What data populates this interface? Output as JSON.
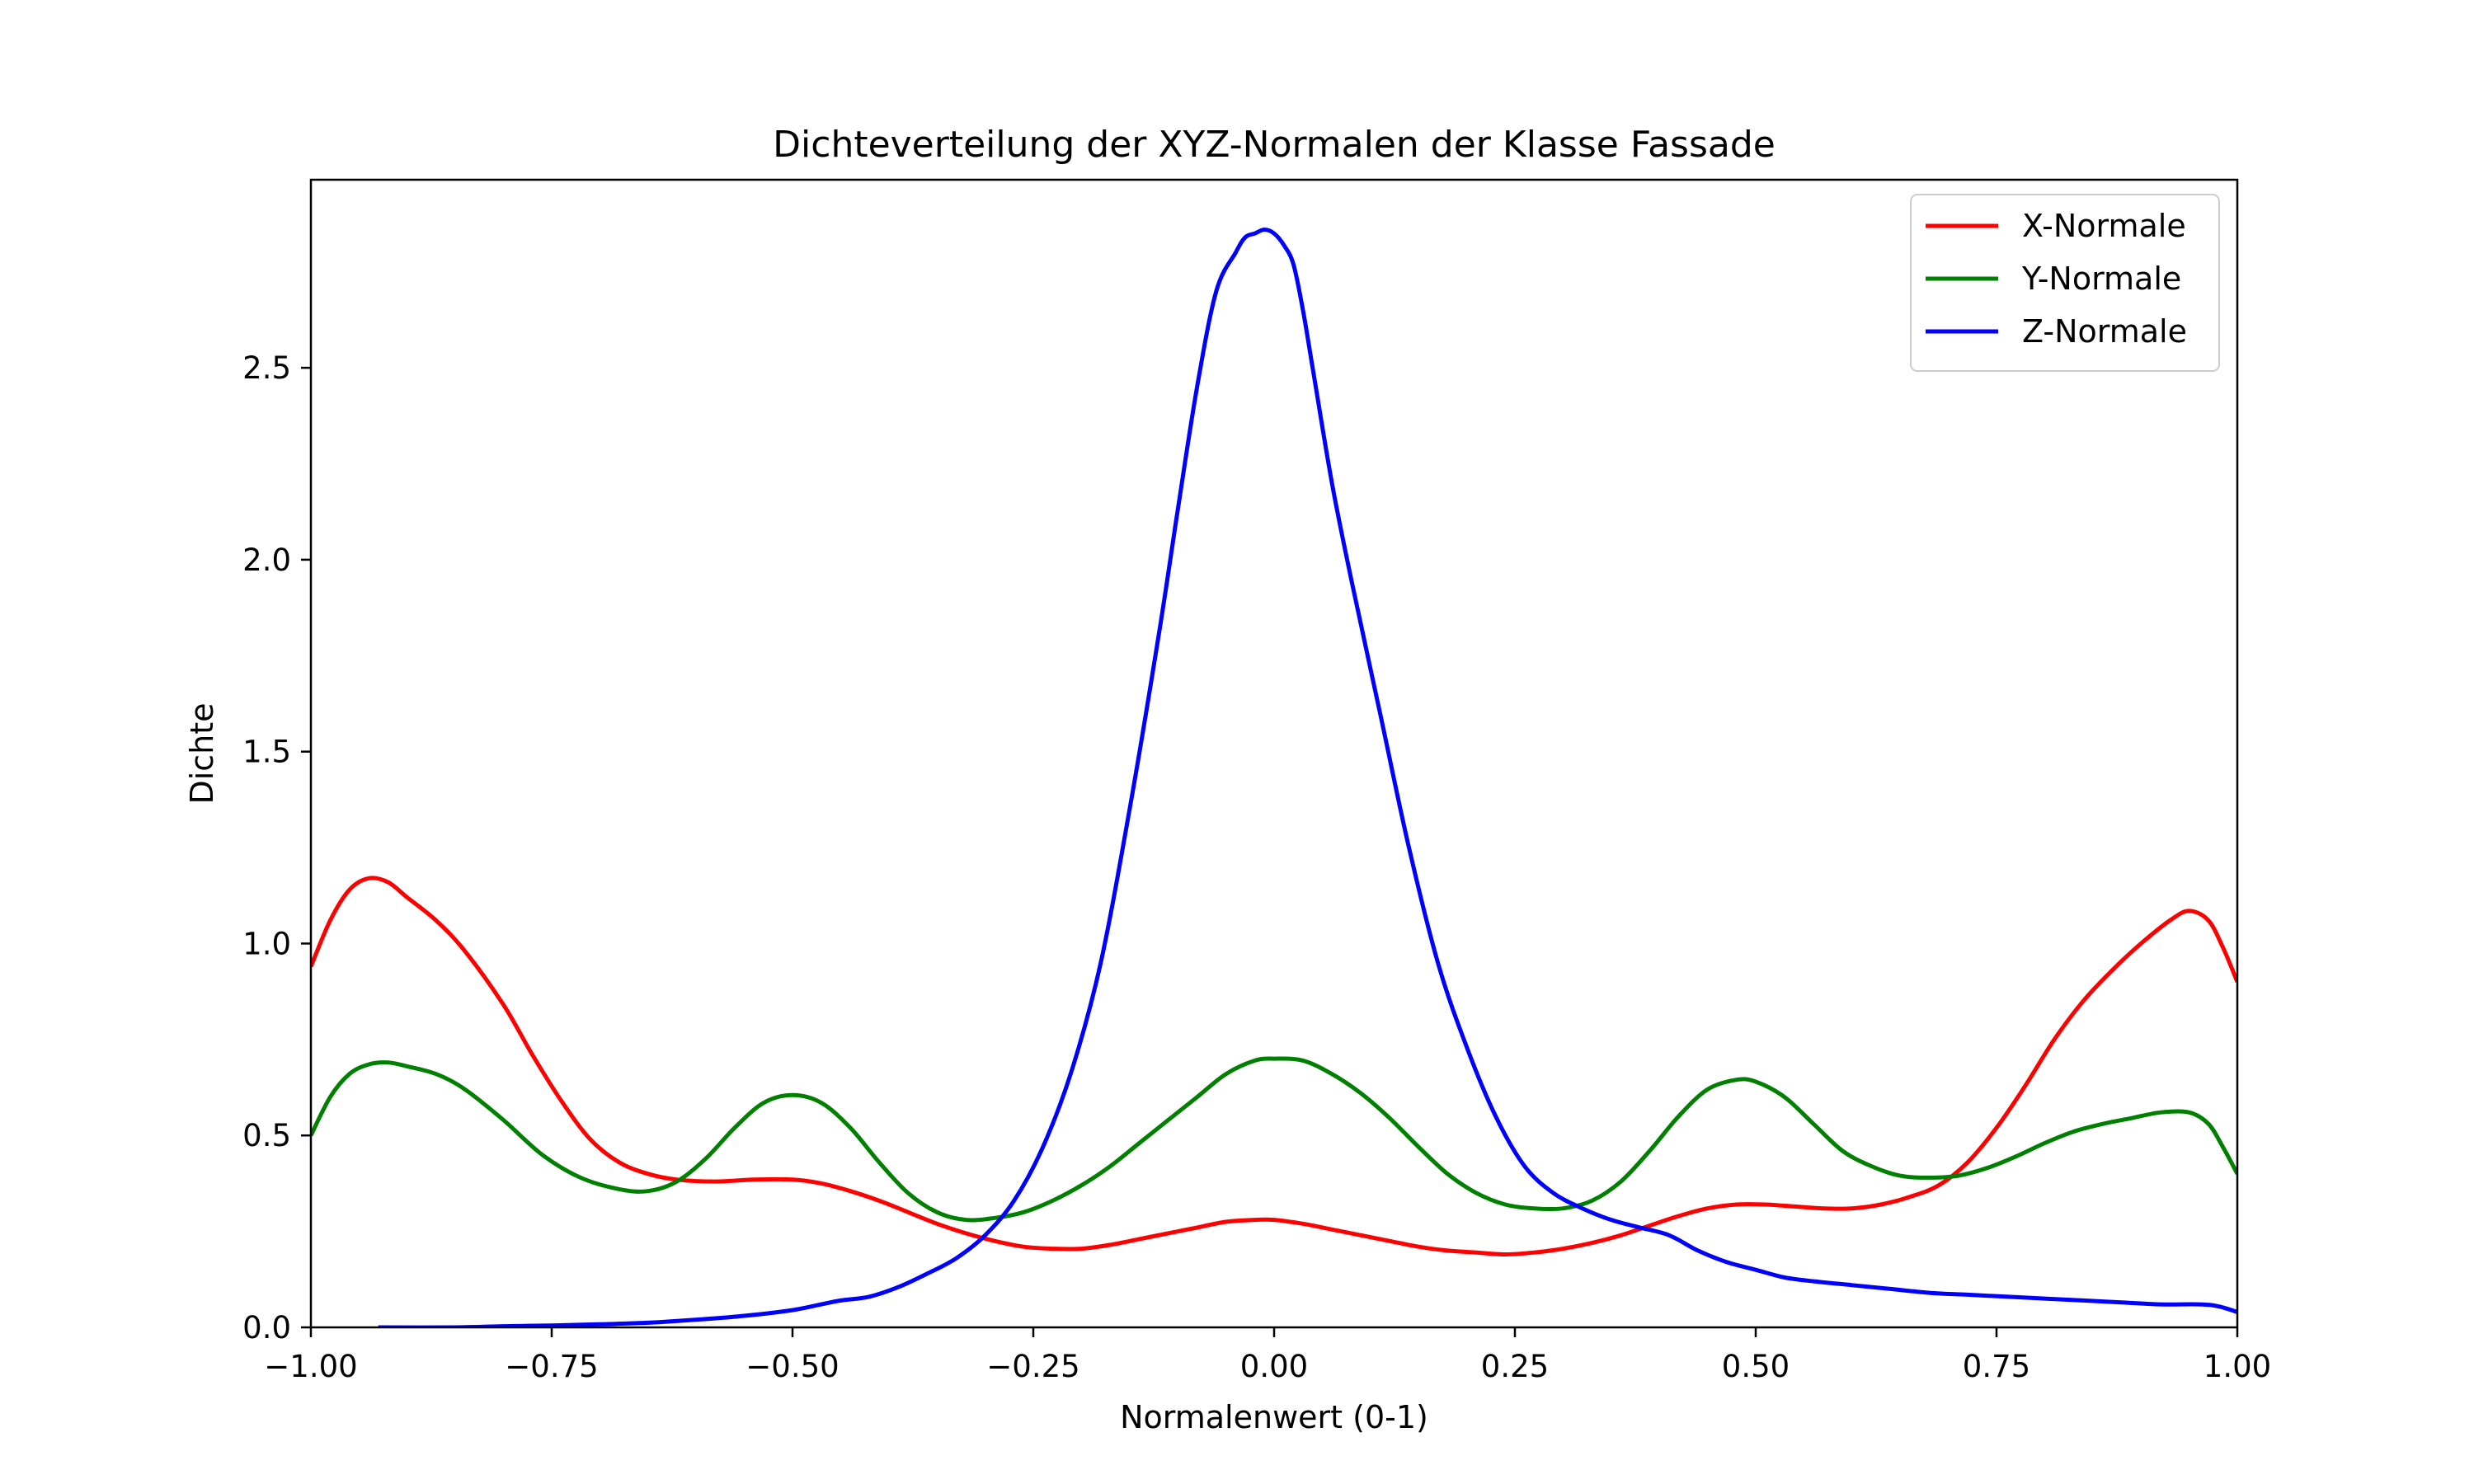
{
  "chart_data": {
    "type": "line",
    "title": "Dichteverteilung der XYZ-Normalen der Klasse Fassade",
    "xlabel": "Normalenwert (0-1)",
    "ylabel": "Dichte",
    "xlim": [
      -1.0,
      1.0
    ],
    "ylim": [
      0.0,
      2.99
    ],
    "grid": false,
    "legend_position": "top-right",
    "x_ticks": [
      "−1.00",
      "−0.75",
      "−0.50",
      "−0.25",
      "0.00",
      "0.25",
      "0.50",
      "0.75",
      "1.00"
    ],
    "x_tick_values": [
      -1.0,
      -0.75,
      -0.5,
      -0.25,
      0.0,
      0.25,
      0.5,
      0.75,
      1.0
    ],
    "y_ticks": [
      "0.0",
      "0.5",
      "1.0",
      "1.5",
      "2.0",
      "2.5"
    ],
    "y_tick_values": [
      0.0,
      0.5,
      1.0,
      1.5,
      2.0,
      2.5
    ],
    "series": [
      {
        "name": "X-Normale",
        "color": "#ff0000",
        "x": [
          -1.0,
          -0.98,
          -0.96,
          -0.94,
          -0.92,
          -0.9,
          -0.87,
          -0.84,
          -0.8,
          -0.77,
          -0.74,
          -0.71,
          -0.68,
          -0.65,
          -0.62,
          -0.58,
          -0.54,
          -0.5,
          -0.47,
          -0.44,
          -0.41,
          -0.38,
          -0.35,
          -0.32,
          -0.29,
          -0.26,
          -0.23,
          -0.2,
          -0.17,
          -0.14,
          -0.11,
          -0.08,
          -0.05,
          -0.02,
          0.0,
          0.03,
          0.06,
          0.09,
          0.12,
          0.15,
          0.18,
          0.21,
          0.24,
          0.27,
          0.3,
          0.33,
          0.36,
          0.39,
          0.42,
          0.45,
          0.48,
          0.51,
          0.54,
          0.57,
          0.6,
          0.63,
          0.66,
          0.69,
          0.72,
          0.75,
          0.78,
          0.81,
          0.84,
          0.87,
          0.9,
          0.93,
          0.95,
          0.97,
          0.985,
          1.0
        ],
        "y": [
          0.94,
          1.06,
          1.14,
          1.17,
          1.16,
          1.12,
          1.06,
          0.98,
          0.84,
          0.71,
          0.59,
          0.49,
          0.43,
          0.4,
          0.385,
          0.38,
          0.385,
          0.385,
          0.375,
          0.355,
          0.33,
          0.3,
          0.27,
          0.245,
          0.225,
          0.21,
          0.205,
          0.205,
          0.215,
          0.23,
          0.245,
          0.26,
          0.275,
          0.28,
          0.28,
          0.27,
          0.255,
          0.24,
          0.225,
          0.21,
          0.2,
          0.195,
          0.19,
          0.195,
          0.205,
          0.22,
          0.24,
          0.265,
          0.29,
          0.31,
          0.32,
          0.32,
          0.315,
          0.31,
          0.31,
          0.32,
          0.34,
          0.37,
          0.43,
          0.52,
          0.63,
          0.75,
          0.85,
          0.93,
          1.0,
          1.06,
          1.085,
          1.06,
          0.99,
          0.9
        ]
      },
      {
        "name": "Y-Normale",
        "color": "#008000",
        "x": [
          -1.0,
          -0.98,
          -0.96,
          -0.94,
          -0.92,
          -0.9,
          -0.87,
          -0.84,
          -0.8,
          -0.76,
          -0.72,
          -0.68,
          -0.65,
          -0.62,
          -0.59,
          -0.56,
          -0.53,
          -0.5,
          -0.47,
          -0.44,
          -0.41,
          -0.38,
          -0.35,
          -0.32,
          -0.29,
          -0.26,
          -0.23,
          -0.2,
          -0.17,
          -0.14,
          -0.11,
          -0.08,
          -0.05,
          -0.02,
          0.0,
          0.03,
          0.06,
          0.09,
          0.12,
          0.15,
          0.18,
          0.21,
          0.24,
          0.27,
          0.3,
          0.33,
          0.36,
          0.39,
          0.42,
          0.45,
          0.48,
          0.5,
          0.53,
          0.56,
          0.59,
          0.62,
          0.65,
          0.68,
          0.71,
          0.74,
          0.77,
          0.8,
          0.83,
          0.86,
          0.89,
          0.92,
          0.95,
          0.97,
          0.985,
          1.0
        ],
        "y": [
          0.5,
          0.6,
          0.66,
          0.685,
          0.69,
          0.68,
          0.66,
          0.62,
          0.54,
          0.45,
          0.39,
          0.36,
          0.355,
          0.38,
          0.44,
          0.52,
          0.585,
          0.605,
          0.585,
          0.52,
          0.43,
          0.35,
          0.3,
          0.28,
          0.285,
          0.3,
          0.33,
          0.37,
          0.42,
          0.48,
          0.54,
          0.6,
          0.66,
          0.695,
          0.7,
          0.695,
          0.66,
          0.61,
          0.545,
          0.47,
          0.4,
          0.35,
          0.32,
          0.31,
          0.31,
          0.33,
          0.38,
          0.46,
          0.55,
          0.62,
          0.645,
          0.64,
          0.6,
          0.53,
          0.46,
          0.42,
          0.395,
          0.39,
          0.395,
          0.415,
          0.445,
          0.48,
          0.51,
          0.53,
          0.545,
          0.56,
          0.56,
          0.53,
          0.47,
          0.4
        ]
      },
      {
        "name": "Z-Normale",
        "color": "#0000ff",
        "x": [
          -0.93,
          -0.85,
          -0.8,
          -0.75,
          -0.7,
          -0.65,
          -0.6,
          -0.55,
          -0.5,
          -0.47,
          -0.45,
          -0.42,
          -0.39,
          -0.36,
          -0.33,
          -0.3,
          -0.27,
          -0.24,
          -0.21,
          -0.18,
          -0.15,
          -0.12,
          -0.1,
          -0.08,
          -0.06,
          -0.04,
          -0.03,
          -0.02,
          -0.01,
          0.0,
          0.01,
          0.02,
          0.03,
          0.04,
          0.06,
          0.08,
          0.11,
          0.14,
          0.17,
          0.2,
          0.23,
          0.26,
          0.29,
          0.32,
          0.35,
          0.38,
          0.41,
          0.44,
          0.47,
          0.5,
          0.53,
          0.56,
          0.6,
          0.64,
          0.68,
          0.72,
          0.76,
          0.8,
          0.84,
          0.88,
          0.92,
          0.96,
          0.98,
          1.0
        ],
        "y": [
          0.0,
          0.0,
          0.003,
          0.005,
          0.008,
          0.012,
          0.02,
          0.03,
          0.045,
          0.06,
          0.07,
          0.08,
          0.105,
          0.14,
          0.18,
          0.24,
          0.33,
          0.47,
          0.67,
          0.95,
          1.35,
          1.8,
          2.13,
          2.45,
          2.7,
          2.8,
          2.84,
          2.85,
          2.86,
          2.85,
          2.82,
          2.77,
          2.65,
          2.5,
          2.2,
          1.95,
          1.6,
          1.25,
          0.95,
          0.73,
          0.55,
          0.42,
          0.35,
          0.31,
          0.28,
          0.26,
          0.24,
          0.2,
          0.17,
          0.15,
          0.13,
          0.12,
          0.11,
          0.1,
          0.09,
          0.085,
          0.08,
          0.075,
          0.07,
          0.065,
          0.06,
          0.06,
          0.055,
          0.04
        ]
      }
    ]
  }
}
